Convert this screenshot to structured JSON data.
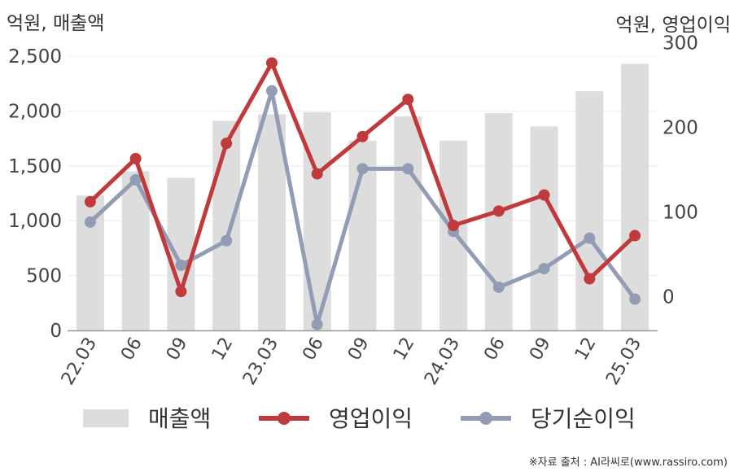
{
  "chart_data": {
    "type": "bar",
    "left_axis_title": "억원, 매출액",
    "right_axis_title": "억원, 영업이익",
    "categories": [
      "22.03",
      "06",
      "09",
      "12",
      "23.03",
      "06",
      "09",
      "12",
      "24.03",
      "06",
      "09",
      "12",
      "25.03"
    ],
    "left_ticks": [
      "0",
      "500",
      "1,000",
      "1,500",
      "2,000",
      "2,500"
    ],
    "right_ticks": [
      "0",
      "100",
      "200",
      "300"
    ],
    "left_ylim": [
      0,
      2700
    ],
    "right_ylim": [
      -40,
      310
    ],
    "grid": true,
    "legend_position": "bottom",
    "series": [
      {
        "name": "매출액",
        "type": "bar",
        "axis": "left",
        "color": "#dddddd",
        "values": [
          1230,
          1450,
          1390,
          1910,
          1970,
          1990,
          1730,
          1950,
          1730,
          1980,
          1860,
          2180,
          2430
        ]
      },
      {
        "name": "영업이익",
        "type": "line",
        "axis": "right",
        "color": "#c0393b",
        "values": [
          112,
          163,
          6,
          181,
          276,
          145,
          189,
          233,
          84,
          101,
          120,
          21,
          72
        ]
      },
      {
        "name": "당기순이익",
        "type": "line",
        "axis": "right",
        "color": "#929cb5",
        "values": [
          88,
          138,
          37,
          66,
          243,
          -33,
          151,
          151,
          77,
          11,
          33,
          69,
          -3
        ]
      }
    ]
  },
  "footer": {
    "source": "※자료 출처 : AI라씨로(www.rassiro.com)"
  }
}
